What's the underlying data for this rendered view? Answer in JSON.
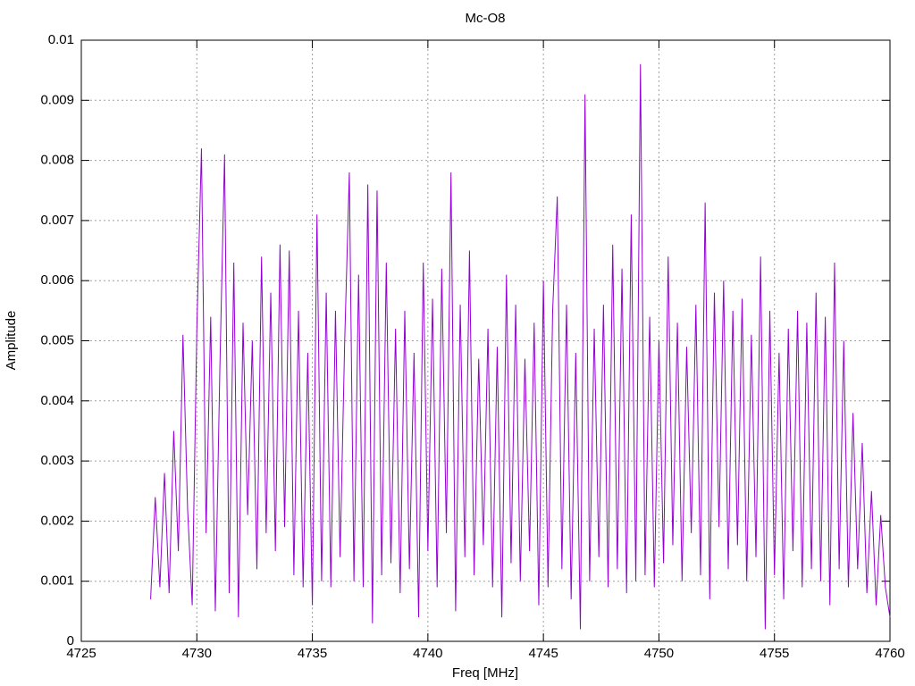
{
  "chart_data": {
    "type": "line",
    "title": "Mc-O8",
    "x_label": "Freq [MHz]",
    "y_label": "Amplitude",
    "xlim": [
      4725,
      4760
    ],
    "xticks": [
      4725,
      4730,
      4735,
      4740,
      4745,
      4750,
      4755,
      4760
    ],
    "ylim": [
      0,
      0.01
    ],
    "yticks": [
      0,
      0.001,
      0.002,
      0.003,
      0.004,
      0.005,
      0.006,
      0.007,
      0.008,
      0.009,
      0.01
    ],
    "grid": true,
    "color": "#9400d3",
    "x": [
      4728.0,
      4728.2,
      4728.4,
      4728.6,
      4728.8,
      4729.0,
      4729.2,
      4729.4,
      4729.6,
      4729.8,
      4730.0,
      4730.2,
      4730.4,
      4730.6,
      4730.8,
      4731.0,
      4731.2,
      4731.4,
      4731.6,
      4731.8,
      4732.0,
      4732.2,
      4732.4,
      4732.6,
      4732.8,
      4733.0,
      4733.2,
      4733.4,
      4733.6,
      4733.8,
      4734.0,
      4734.2,
      4734.4,
      4734.6,
      4734.8,
      4735.0,
      4735.2,
      4735.4,
      4735.6,
      4735.8,
      4736.0,
      4736.2,
      4736.4,
      4736.6,
      4736.8,
      4737.0,
      4737.2,
      4737.4,
      4737.6,
      4737.8,
      4738.0,
      4738.2,
      4738.4,
      4738.6,
      4738.8,
      4739.0,
      4739.2,
      4739.4,
      4739.6,
      4739.8,
      4740.0,
      4740.2,
      4740.4,
      4740.6,
      4740.8,
      4741.0,
      4741.2,
      4741.4,
      4741.6,
      4741.8,
      4742.0,
      4742.2,
      4742.4,
      4742.6,
      4742.8,
      4743.0,
      4743.2,
      4743.4,
      4743.6,
      4743.8,
      4744.0,
      4744.2,
      4744.4,
      4744.6,
      4744.8,
      4745.0,
      4745.2,
      4745.4,
      4745.6,
      4745.8,
      4746.0,
      4746.2,
      4746.4,
      4746.6,
      4746.8,
      4747.0,
      4747.2,
      4747.4,
      4747.6,
      4747.8,
      4748.0,
      4748.2,
      4748.4,
      4748.6,
      4748.8,
      4749.0,
      4749.2,
      4749.4,
      4749.6,
      4749.8,
      4750.0,
      4750.2,
      4750.4,
      4750.6,
      4750.8,
      4751.0,
      4751.2,
      4751.4,
      4751.6,
      4751.8,
      4752.0,
      4752.2,
      4752.4,
      4752.6,
      4752.8,
      4753.0,
      4753.2,
      4753.4,
      4753.6,
      4753.8,
      4754.0,
      4754.2,
      4754.4,
      4754.6,
      4754.8,
      4755.0,
      4755.2,
      4755.4,
      4755.6,
      4755.8,
      4756.0,
      4756.2,
      4756.4,
      4756.6,
      4756.8,
      4757.0,
      4757.2,
      4757.4,
      4757.6,
      4757.8,
      4758.0,
      4758.2,
      4758.4,
      4758.6,
      4758.8,
      4759.0,
      4759.2,
      4759.4,
      4759.6,
      4759.8,
      4760.0
    ],
    "values": [
      0.0007,
      0.0024,
      0.0009,
      0.0028,
      0.0008,
      0.0035,
      0.0015,
      0.0051,
      0.0022,
      0.0006,
      0.0052,
      0.0082,
      0.0018,
      0.0054,
      0.0005,
      0.0046,
      0.0081,
      0.0008,
      0.0063,
      0.0004,
      0.0053,
      0.0021,
      0.005,
      0.0012,
      0.0064,
      0.0018,
      0.0058,
      0.0015,
      0.0066,
      0.0019,
      0.0065,
      0.0011,
      0.0055,
      0.0009,
      0.0048,
      0.0006,
      0.0071,
      0.001,
      0.0058,
      0.0009,
      0.0055,
      0.0014,
      0.005,
      0.0078,
      0.001,
      0.0061,
      0.0009,
      0.0076,
      0.0003,
      0.0075,
      0.0011,
      0.0063,
      0.0013,
      0.0052,
      0.0008,
      0.0055,
      0.0012,
      0.0048,
      0.0004,
      0.0063,
      0.0015,
      0.0057,
      0.0009,
      0.0062,
      0.0018,
      0.0078,
      0.0005,
      0.0056,
      0.0014,
      0.0065,
      0.0011,
      0.0047,
      0.0016,
      0.0052,
      0.0009,
      0.0049,
      0.0004,
      0.0061,
      0.0013,
      0.0056,
      0.001,
      0.0047,
      0.0015,
      0.0053,
      0.0006,
      0.006,
      0.0009,
      0.0055,
      0.0074,
      0.0012,
      0.0056,
      0.0007,
      0.0048,
      0.0002,
      0.0091,
      0.001,
      0.0052,
      0.0014,
      0.0056,
      0.0009,
      0.0066,
      0.0012,
      0.0062,
      0.0008,
      0.0071,
      0.001,
      0.0096,
      0.0011,
      0.0054,
      0.0009,
      0.005,
      0.0013,
      0.0064,
      0.0016,
      0.0053,
      0.001,
      0.0049,
      0.0018,
      0.0056,
      0.0011,
      0.0073,
      0.0007,
      0.0058,
      0.0019,
      0.006,
      0.0012,
      0.0055,
      0.0016,
      0.0057,
      0.001,
      0.0051,
      0.0014,
      0.0064,
      0.0002,
      0.0055,
      0.0011,
      0.0048,
      0.0007,
      0.0052,
      0.0015,
      0.0055,
      0.0009,
      0.0053,
      0.0012,
      0.0058,
      0.001,
      0.0054,
      0.0006,
      0.0063,
      0.0012,
      0.005,
      0.0009,
      0.0038,
      0.0012,
      0.0033,
      0.0008,
      0.0025,
      0.0006,
      0.0021,
      0.0009,
      0.0004
    ]
  }
}
